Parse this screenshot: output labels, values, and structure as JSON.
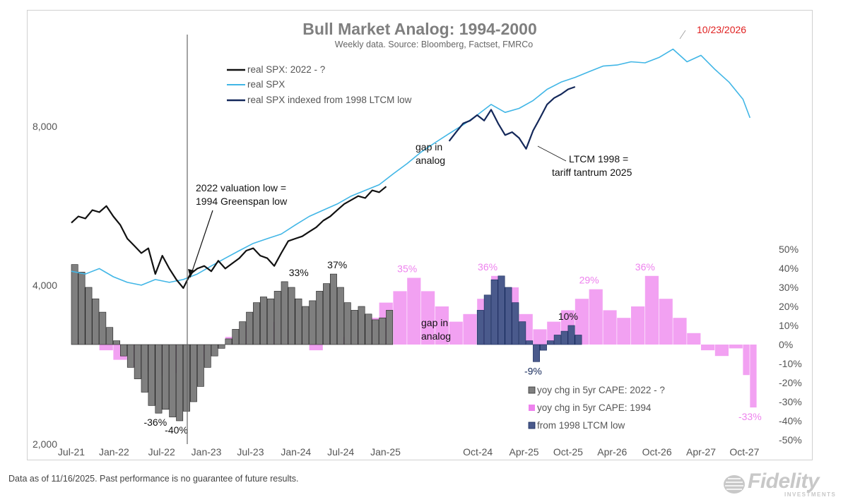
{
  "chart_data": {
    "type": "line+bar",
    "title": "Bull Market Analog: 1994-2000",
    "subtitle": "Weekly data.  Source: Bloomberg, Factset, FMRCo",
    "left_axis": {
      "scale": "log",
      "ticks": [
        "8,000",
        "4,000",
        "2,000"
      ],
      "tick_values": [
        8000,
        4000,
        2000
      ],
      "range": [
        2000,
        11500
      ]
    },
    "right_axis": {
      "ticks": [
        "50%",
        "40%",
        "30%",
        "20%",
        "10%",
        "0%",
        "-10%",
        "-20%",
        "-30%",
        "-40%",
        "-50%"
      ],
      "tick_values": [
        50,
        40,
        30,
        20,
        10,
        0,
        -10,
        -20,
        -30,
        -40,
        -50
      ],
      "range": [
        -50,
        50
      ]
    },
    "x_ticks": [
      "Jul-21",
      "Jan-22",
      "Jul-22",
      "Jan-23",
      "Jul-23",
      "Jan-24",
      "Jul-24",
      "Jan-25",
      "Oct-24",
      "Apr-25",
      "Oct-25",
      "Apr-26",
      "Oct-26",
      "Apr-27",
      "Oct-27"
    ],
    "x_range": [
      0,
      100
    ],
    "x_tick_positions": [
      0,
      6.1,
      12.9,
      19.3,
      25.6,
      32.1,
      38.5,
      44.9,
      58.1,
      64.7,
      71.0,
      77.3,
      83.7,
      90.0,
      96.2
    ],
    "series": [
      {
        "name": "real SPX: 2022 - ?",
        "color": "#111111",
        "axis": "left",
        "x": [
          0,
          1,
          2,
          3,
          4,
          5,
          6,
          7,
          8,
          9,
          10,
          11,
          12,
          13,
          14,
          15,
          16,
          17,
          18,
          19,
          20,
          21,
          22,
          23,
          24,
          25,
          26,
          27,
          28,
          29,
          30,
          31,
          32,
          33,
          34,
          35,
          36,
          37,
          38,
          39,
          40,
          41,
          42,
          43,
          44,
          45
        ],
        "values": [
          5250,
          5400,
          5350,
          5550,
          5500,
          5650,
          5400,
          5200,
          4900,
          4750,
          4600,
          4700,
          4200,
          4550,
          4300,
          4100,
          3950,
          4200,
          4300,
          4350,
          4250,
          4450,
          4300,
          4400,
          4500,
          4650,
          4700,
          4550,
          4500,
          4350,
          4600,
          4850,
          4900,
          4950,
          5050,
          5150,
          5300,
          5400,
          5550,
          5700,
          5800,
          5900,
          5850,
          6050,
          6000,
          6150
        ]
      },
      {
        "name": "real SPX",
        "color": "#41b6e6",
        "axis": "left",
        "x": [
          0,
          2,
          4,
          6,
          8,
          10,
          12,
          14,
          16,
          18,
          20,
          22,
          24,
          26,
          28,
          30,
          32,
          34,
          36,
          38,
          40,
          42,
          44,
          46,
          48,
          50,
          52,
          54,
          56,
          58,
          60,
          62,
          64,
          66,
          68,
          70,
          72,
          74,
          76,
          78,
          80,
          82,
          84,
          86,
          88,
          90,
          92,
          94,
          96,
          97
        ],
        "values": [
          4250,
          4200,
          4300,
          4150,
          4050,
          4000,
          4100,
          4050,
          4100,
          4200,
          4350,
          4500,
          4650,
          4800,
          4900,
          5000,
          5200,
          5400,
          5550,
          5700,
          5900,
          6050,
          6200,
          6500,
          6800,
          7150,
          7450,
          7750,
          8050,
          8400,
          8800,
          8500,
          8650,
          8950,
          9400,
          9700,
          9900,
          10150,
          10400,
          10450,
          10600,
          10550,
          10800,
          11200,
          10600,
          10900,
          10250,
          9700,
          9000,
          8300
        ]
      },
      {
        "name": "real SPX indexed from 1998 LTCM low",
        "color": "#14285a",
        "axis": "left",
        "x": [
          54,
          55,
          56,
          57,
          58,
          59,
          60,
          61,
          62,
          63,
          64,
          65,
          66,
          67,
          68,
          69,
          70,
          71,
          72
        ],
        "values": [
          7500,
          7800,
          8100,
          8200,
          8400,
          8200,
          8600,
          8100,
          7700,
          7800,
          7600,
          7250,
          7850,
          8300,
          8800,
          9050,
          9200,
          9400,
          9500
        ]
      }
    ],
    "bar_series": [
      {
        "name": "yoy chg in 5yr CAPE: 2022 - ?",
        "color": "#7f7f7f",
        "axis": "right",
        "x": [
          0,
          1,
          2,
          3,
          4,
          5,
          6,
          7,
          8,
          9,
          10,
          11,
          12,
          13,
          14,
          15,
          16,
          17,
          18,
          19,
          20,
          21,
          22,
          23,
          24,
          25,
          26,
          27,
          28,
          29,
          30,
          31,
          32,
          33,
          34,
          35,
          36,
          37,
          38,
          39,
          40,
          41,
          42,
          43,
          44,
          45
        ],
        "values": [
          42,
          38,
          30,
          24,
          17,
          9,
          2,
          -6,
          -12,
          -18,
          -25,
          -32,
          -36,
          -34,
          -38,
          -40,
          -35,
          -30,
          -22,
          -12,
          -6,
          -2,
          3,
          8,
          12,
          17,
          22,
          25,
          24,
          28,
          33,
          30,
          24,
          20,
          23,
          28,
          32,
          37,
          30,
          22,
          18,
          20,
          16,
          13,
          14,
          18
        ]
      },
      {
        "name": "yoy chg in 5yr CAPE: 1994",
        "color": "#ee82ee",
        "axis": "right",
        "x": [
          0,
          2,
          4,
          6,
          8,
          10,
          12,
          14,
          16,
          18,
          20,
          22,
          24,
          26,
          28,
          30,
          32,
          34,
          36,
          38,
          40,
          42,
          44,
          46,
          48,
          50,
          52,
          54,
          56,
          58,
          60,
          62,
          64,
          66,
          68,
          70,
          72,
          74,
          76,
          78,
          80,
          82,
          84,
          86,
          88,
          90,
          92,
          94,
          96,
          97
        ],
        "values": [
          3,
          1,
          -3,
          -8,
          -12,
          -14,
          -16,
          -15,
          -12,
          -8,
          -2,
          4,
          10,
          14,
          12,
          8,
          2,
          -3,
          0,
          4,
          8,
          14,
          22,
          28,
          35,
          28,
          20,
          12,
          16,
          24,
          36,
          30,
          16,
          8,
          12,
          18,
          24,
          29,
          18,
          14,
          20,
          36,
          24,
          14,
          6,
          -3,
          -6,
          -2,
          -16,
          -33
        ]
      },
      {
        "name": "from 1998 LTCM low",
        "color": "#4a5a8c",
        "axis": "right",
        "x": [
          58,
          59,
          60,
          61,
          62,
          63,
          64,
          65,
          66,
          67,
          68,
          69,
          70,
          71,
          72
        ],
        "values": [
          18,
          26,
          34,
          36,
          30,
          22,
          12,
          2,
          -9,
          -3,
          2,
          5,
          7,
          10,
          5
        ]
      }
    ],
    "legend_lines": [
      "real SPX: 2022 - ?",
      "real SPX",
      "real SPX indexed from 1998 LTCM low"
    ],
    "legend_bars": [
      "yoy chg in 5yr CAPE: 2022 - ?",
      "yoy chg in 5yr CAPE: 1994",
      "from 1998 LTCM low"
    ],
    "annotations": [
      {
        "text": "10/23/2026",
        "color": "#e02020"
      },
      {
        "text": "gap in analog",
        "lines": [
          "gap in",
          "analog"
        ]
      },
      {
        "text": "LTCM 1998 = tariff tantrum 2025",
        "lines": [
          "LTCM 1998 =",
          "tariff tantrum 2025"
        ]
      },
      {
        "text": "2022 valuation low = 1994 Greenspan  low",
        "lines": [
          "2022 valuation low =",
          "1994 Greenspan  low"
        ]
      },
      {
        "text": "gap in analog",
        "lines": [
          "gap in",
          "analog"
        ]
      }
    ],
    "bar_labels": [
      {
        "text": "33%",
        "color": "#111111",
        "x": 32.5,
        "v": 33
      },
      {
        "text": "37%",
        "color": "#111111",
        "x": 38,
        "v": 37
      },
      {
        "text": "35%",
        "color": "#ee82ee",
        "x": 48,
        "v": 35
      },
      {
        "text": "36%",
        "color": "#ee82ee",
        "x": 59.5,
        "v": 36
      },
      {
        "text": "29%",
        "color": "#ee82ee",
        "x": 74,
        "v": 29
      },
      {
        "text": "10%",
        "color": "#111111",
        "x": 71,
        "v": 10
      },
      {
        "text": "36%",
        "color": "#ee82ee",
        "x": 82,
        "v": 36
      },
      {
        "text": "-36%",
        "color": "#111111",
        "x": 12,
        "v": -36
      },
      {
        "text": "-40%",
        "color": "#111111",
        "x": 15,
        "v": -40
      },
      {
        "text": "-9%",
        "color": "#14285a",
        "x": 66,
        "v": -9
      },
      {
        "text": "-33%",
        "color": "#ee82ee",
        "x": 97,
        "v": -33
      }
    ]
  },
  "footnote": "Data as of 11/16/2025. Past performance is no guarantee of future results.",
  "logo": {
    "name": "Fidelity",
    "sub": "INVESTMENTS"
  }
}
